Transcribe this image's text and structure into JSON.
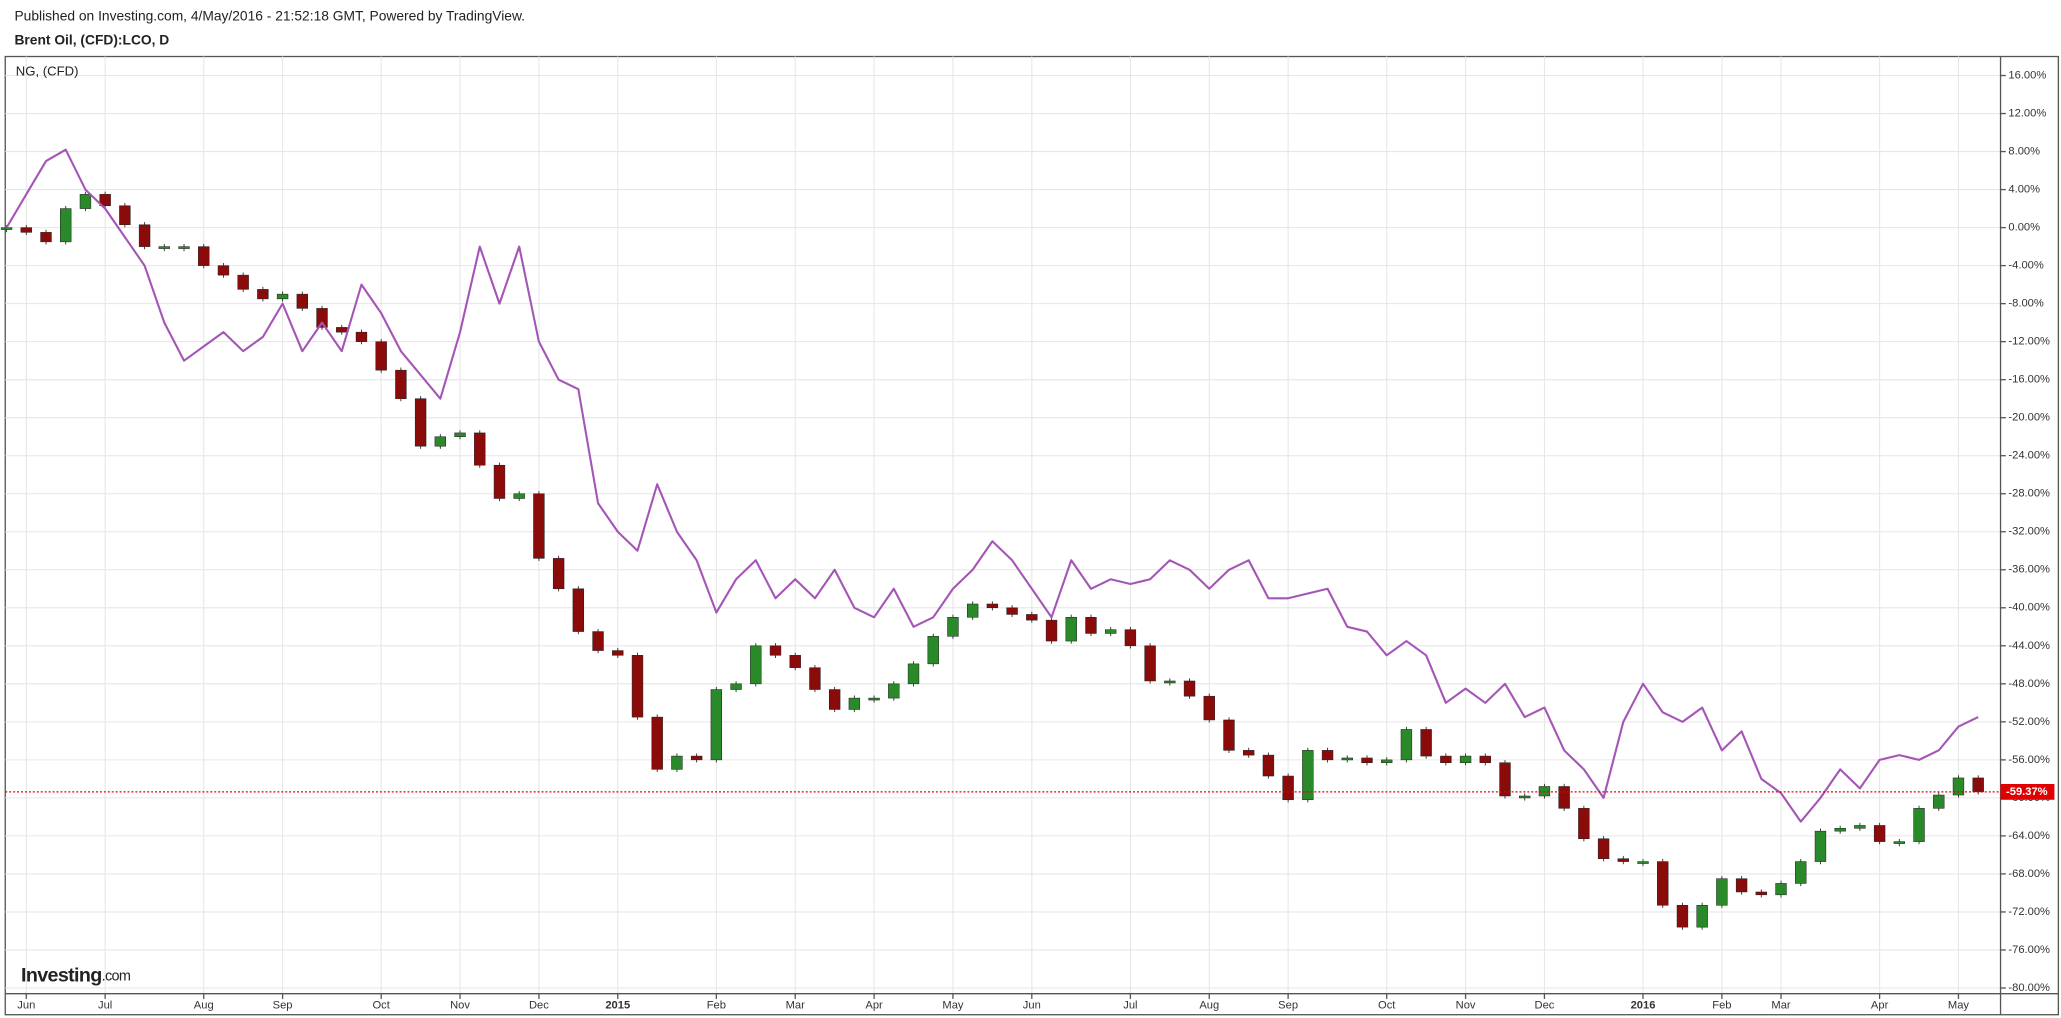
{
  "header": {
    "published": "Published on Investing.com, 4/May/2016 - 21:52:18 GMT, Powered by TradingView."
  },
  "logo": {
    "brand": "Investing",
    "suffix": ".com"
  },
  "chart_data": {
    "type": "candlestick",
    "title": "Brent Oil, (CFD):LCO, D",
    "categories": [
      null,
      "Jun",
      null,
      null,
      null,
      "Jul",
      null,
      null,
      null,
      null,
      "Aug",
      null,
      null,
      null,
      "Sep",
      null,
      null,
      null,
      null,
      "Oct",
      null,
      null,
      null,
      "Nov",
      null,
      null,
      null,
      "Dec",
      null,
      null,
      null,
      "2015",
      null,
      null,
      null,
      null,
      "Feb",
      null,
      null,
      null,
      "Mar",
      null,
      null,
      null,
      "Apr",
      null,
      null,
      null,
      "May",
      null,
      null,
      null,
      "Jun",
      null,
      null,
      null,
      null,
      "Jul",
      null,
      null,
      null,
      "Aug",
      null,
      null,
      null,
      "Sep",
      null,
      null,
      null,
      null,
      "Oct",
      null,
      null,
      null,
      "Nov",
      null,
      null,
      null,
      "Dec",
      null,
      null,
      null,
      null,
      "2016",
      null,
      null,
      null,
      "Feb",
      null,
      null,
      "Mar",
      null,
      null,
      null,
      null,
      "Apr",
      null,
      null,
      null,
      "May",
      null
    ],
    "series": [
      {
        "type": "candlestick",
        "up_color": "#2a8a2a",
        "down_color": "#8b0a0a",
        "values": [
          0,
          -0.5,
          -1.5,
          2,
          3.5,
          2.3,
          0.3,
          -2,
          -2,
          -2,
          -4,
          -5,
          -6.5,
          -7.5,
          -7,
          -8.5,
          -10.5,
          -11,
          -12,
          -15,
          -18,
          -23,
          -22,
          -21.6,
          -25,
          -28.5,
          -28,
          -34.8,
          -38,
          -42.5,
          -44.5,
          -45,
          -51.5,
          -57,
          -55.6,
          -56,
          -48.6,
          -48,
          -44,
          -45,
          -46.3,
          -48.6,
          -50.7,
          -49.5,
          -49.5,
          -48,
          -45.9,
          -43,
          -41,
          -39.6,
          -40,
          -40.7,
          -41.3,
          -43.5,
          -41,
          -42.7,
          -42.3,
          -44,
          -47.7,
          -47.7,
          -49.3,
          -51.8,
          -55,
          -55.5,
          -57.7,
          -60.2,
          -55,
          -56,
          -55.8,
          -56.3,
          -56,
          -52.8,
          -55.6,
          -56.3,
          -55.6,
          -56.3,
          -59.8,
          -59.8,
          -58.8,
          -61.1,
          -64.3,
          -66.4,
          -66.7,
          -66.7,
          -71.3,
          -73.6,
          -71.3,
          -68.5,
          -69.9,
          -70.2,
          -69,
          -66.7,
          -63.5,
          -63.2,
          -62.9,
          -64.6,
          -64.6,
          -61.1,
          -59.7,
          -57.9,
          -59.37
        ]
      },
      {
        "type": "line",
        "name": "NG,  (CFD)",
        "color": "#a555b5",
        "values": [
          0,
          3.5,
          7,
          8.2,
          4,
          2,
          -1,
          -4,
          -10,
          -14,
          -12.5,
          -11,
          -13,
          -11.5,
          -8,
          -13,
          -10,
          -13,
          -6,
          -9,
          -13,
          -15.5,
          -18,
          -11,
          -2,
          -8,
          -2,
          -12,
          -16,
          -17,
          -29,
          -32,
          -34,
          -27,
          -32,
          -35,
          -40.5,
          -37,
          -35,
          -39,
          -37,
          -39,
          -36,
          -40,
          -41,
          -38,
          -42,
          -41,
          -38,
          -36,
          -33,
          -35,
          -38,
          -41,
          -35,
          -38,
          -37,
          -37.5,
          -37,
          -35,
          -36,
          -38,
          -36,
          -35,
          -39,
          -39,
          -38.5,
          -38,
          -42,
          -42.5,
          -45,
          -43.5,
          -45,
          -50,
          -48.5,
          -50,
          -48,
          -51.5,
          -50.5,
          -55,
          -57,
          -60,
          -52,
          -48,
          -51,
          -52,
          -50.5,
          -55,
          -53,
          -58,
          -59.5,
          -62.5,
          -60,
          -57,
          -59,
          -56,
          -55.5,
          -56,
          -55,
          -52.5,
          -51.5
        ]
      }
    ],
    "price_line": {
      "value": -59.37,
      "label": "-59.37%",
      "color": "#e00000"
    },
    "ylim": [
      -80.6,
      18
    ],
    "yticks": [
      {
        "value": -80,
        "label": "-80.00%"
      },
      {
        "value": -76,
        "label": "-76.00%"
      },
      {
        "value": -72,
        "label": "-72.00%"
      },
      {
        "value": -68,
        "label": "-68.00%"
      },
      {
        "value": -64,
        "label": "-64.00%"
      },
      {
        "value": -60,
        "label": "-60.00%"
      },
      {
        "value": -56,
        "label": "-56.00%"
      },
      {
        "value": -52,
        "label": "-52.00%"
      },
      {
        "value": -48,
        "label": "-48.00%"
      },
      {
        "value": -44,
        "label": "-44.00%"
      },
      {
        "value": -40,
        "label": "-40.00%"
      },
      {
        "value": -36,
        "label": "-36.00%"
      },
      {
        "value": -32,
        "label": "-32.00%"
      },
      {
        "value": -28,
        "label": "-28.00%"
      },
      {
        "value": -24,
        "label": "-24.00%"
      },
      {
        "value": -20,
        "label": "-20.00%"
      },
      {
        "value": -16,
        "label": "-16.00%"
      },
      {
        "value": -12,
        "label": "-12.00%"
      },
      {
        "value": -8,
        "label": "-8.00%"
      },
      {
        "value": -4,
        "label": "-4.00%"
      },
      {
        "value": 0,
        "label": "0.00%"
      },
      {
        "value": 4,
        "label": "4.00%"
      },
      {
        "value": 8,
        "label": "8.00%"
      },
      {
        "value": 12,
        "label": "12.00%"
      },
      {
        "value": 16,
        "label": "16.00%"
      }
    ],
    "grid": true
  }
}
